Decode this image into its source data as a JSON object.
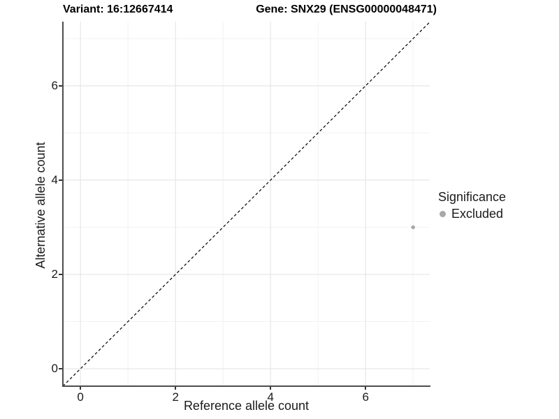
{
  "figure": {
    "title_left": "Variant: 16:12667414",
    "title_right": "Gene: SNX29 (ENSG00000048471)"
  },
  "chart_data": {
    "type": "scatter",
    "title_left": "Variant: 16:12667414",
    "title_right": "Gene: SNX29 (ENSG00000048471)",
    "xlabel": "Reference allele count",
    "ylabel": "Alternative allele count",
    "xlim": [
      -0.37,
      7.35
    ],
    "ylim": [
      -0.37,
      7.36
    ],
    "x_major_ticks": [
      0,
      2,
      4,
      6
    ],
    "x_minor_ticks": [
      1,
      3,
      5,
      7
    ],
    "y_major_ticks": [
      0,
      2,
      4,
      6
    ],
    "y_minor_ticks": [
      1,
      3,
      5,
      7
    ],
    "grid": true,
    "reference_line": {
      "type": "identity",
      "slope": 1,
      "intercept": 0,
      "style": "dashed",
      "color": "#000000"
    },
    "series": [
      {
        "name": "Excluded",
        "color": "#a8a8a8",
        "point_radius": 2.8,
        "points": [
          {
            "x": 7,
            "y": 3
          }
        ]
      }
    ],
    "legend": {
      "title": "Significance",
      "position": "right",
      "items": [
        {
          "label": "Excluded",
          "color": "#a8a8a8",
          "marker": "circle"
        }
      ]
    },
    "colors": {
      "background": "#ffffff",
      "grid_major": "#e6e6e6",
      "grid_minor": "#f2f2f2",
      "axis_line": "#4d4d4d",
      "tick_mark": "#333333",
      "text": "#1a1a1a"
    }
  }
}
